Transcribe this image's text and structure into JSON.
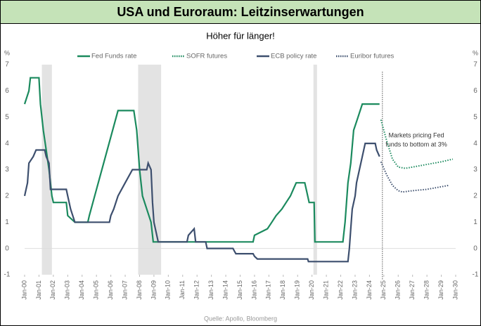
{
  "chart_data": {
    "type": "line",
    "title": "USA und Euroraum: Leitzinserwartungen",
    "subtitle": "Höher für länger!",
    "source": "Quelle: Apollo, Bloomberg",
    "ylabel": "%",
    "y2label": "%",
    "annotation": [
      "Markets pricing Fed",
      "funds to bottom at 3%"
    ],
    "vline": 2024.9,
    "shaded": [
      [
        2001.2,
        2001.9
      ],
      [
        2007.9,
        2009.5
      ],
      [
        2020.1,
        2020.35
      ]
    ],
    "xlim": [
      2000,
      2030
    ],
    "xticks": [
      {
        "value": 2000,
        "label": "Jan-00"
      },
      {
        "value": 2001,
        "label": "Jan-01"
      },
      {
        "value": 2002,
        "label": "Jan-02"
      },
      {
        "value": 2003,
        "label": "Jan-03"
      },
      {
        "value": 2004,
        "label": "Jan-04"
      },
      {
        "value": 2005,
        "label": "Jan-05"
      },
      {
        "value": 2006,
        "label": "Jan-06"
      },
      {
        "value": 2007,
        "label": "Jan-07"
      },
      {
        "value": 2008,
        "label": "Jan-08"
      },
      {
        "value": 2009,
        "label": "Jan-09"
      },
      {
        "value": 2010,
        "label": "Jan-10"
      },
      {
        "value": 2011,
        "label": "Jan-11"
      },
      {
        "value": 2012,
        "label": "Jan-12"
      },
      {
        "value": 2013,
        "label": "Jan-13"
      },
      {
        "value": 2014,
        "label": "Jan-14"
      },
      {
        "value": 2015,
        "label": "Jan-15"
      },
      {
        "value": 2016,
        "label": "Jan-16"
      },
      {
        "value": 2017,
        "label": "Jan-17"
      },
      {
        "value": 2018,
        "label": "Jan-18"
      },
      {
        "value": 2019,
        "label": "Jan-19"
      },
      {
        "value": 2020,
        "label": "Jan-20"
      },
      {
        "value": 2021,
        "label": "Jan-21"
      },
      {
        "value": 2022,
        "label": "Jan-22"
      },
      {
        "value": 2023,
        "label": "Jan-23"
      },
      {
        "value": 2024,
        "label": "Jan-24"
      },
      {
        "value": 2025,
        "label": "Jan-25"
      },
      {
        "value": 2026,
        "label": "Jan-26"
      },
      {
        "value": 2027,
        "label": "Jan-27"
      },
      {
        "value": 2028,
        "label": "Jan-28"
      },
      {
        "value": 2029,
        "label": "Jan-29"
      },
      {
        "value": 2030,
        "label": "Jan-30"
      }
    ],
    "ylim": [
      -1,
      7
    ],
    "yticks": [
      -1,
      0,
      1,
      2,
      3,
      4,
      5,
      6,
      7
    ],
    "y2lim": [
      -1,
      7
    ],
    "y2ticks": [
      -1,
      0,
      1,
      2,
      3,
      4,
      5,
      6,
      7
    ],
    "series": [
      {
        "name": "Fed Funds rate",
        "color": "#1b8a5e",
        "dash": false,
        "x": [
          2000.0,
          2000.3,
          2000.4,
          2001.0,
          2001.1,
          2001.3,
          2001.5,
          2001.7,
          2001.9,
          2002.0,
          2002.9,
          2003.0,
          2003.5,
          2004.4,
          2004.5,
          2005.0,
          2005.5,
          2006.0,
          2006.5,
          2007.6,
          2007.8,
          2008.0,
          2008.2,
          2008.8,
          2008.95,
          2015.9,
          2016.0,
          2016.9,
          2017.2,
          2017.5,
          2017.9,
          2018.2,
          2018.5,
          2018.7,
          2018.9,
          2019.5,
          2019.6,
          2019.8,
          2020.15,
          2020.2,
          2022.15,
          2022.3,
          2022.5,
          2022.7,
          2022.9,
          2023.2,
          2023.5,
          2024.7
        ],
        "values": [
          5.5,
          6.0,
          6.5,
          6.5,
          5.5,
          4.5,
          3.75,
          3.0,
          2.0,
          1.75,
          1.75,
          1.25,
          1.0,
          1.0,
          1.25,
          2.25,
          3.25,
          4.25,
          5.25,
          5.25,
          4.5,
          3.0,
          2.0,
          1.0,
          0.25,
          0.25,
          0.5,
          0.75,
          1.0,
          1.25,
          1.5,
          1.75,
          2.0,
          2.25,
          2.5,
          2.5,
          2.25,
          1.75,
          1.75,
          0.25,
          0.25,
          1.0,
          2.5,
          3.25,
          4.5,
          5.0,
          5.5,
          5.5
        ]
      },
      {
        "name": "SOFR futures",
        "color": "#1b8a5e",
        "dash": true,
        "x": [
          2024.8,
          2025.2,
          2025.6,
          2026.0,
          2026.5,
          2027.0,
          2028.0,
          2029.0,
          2029.8
        ],
        "values": [
          4.9,
          4.1,
          3.4,
          3.1,
          3.05,
          3.1,
          3.2,
          3.3,
          3.4
        ]
      },
      {
        "name": "ECB policy rate",
        "color": "#3d4f6e",
        "dash": false,
        "x": [
          2000.0,
          2000.2,
          2000.3,
          2000.6,
          2000.8,
          2001.4,
          2001.5,
          2001.7,
          2001.8,
          2002.9,
          2003.0,
          2003.2,
          2003.5,
          2005.9,
          2006.0,
          2006.2,
          2006.5,
          2007.0,
          2007.5,
          2008.5,
          2008.6,
          2008.8,
          2008.9,
          2009.0,
          2009.3,
          2011.3,
          2011.4,
          2011.8,
          2011.9,
          2012.6,
          2012.7,
          2014.5,
          2014.6,
          2014.7,
          2015.9,
          2016.0,
          2016.2,
          2019.7,
          2019.75,
          2022.5,
          2022.6,
          2022.7,
          2022.8,
          2023.0,
          2023.1,
          2023.3,
          2023.5,
          2023.7,
          2024.4,
          2024.5,
          2024.7
        ],
        "values": [
          2.0,
          2.5,
          3.25,
          3.5,
          3.75,
          3.75,
          3.5,
          3.25,
          2.25,
          2.25,
          2.0,
          1.5,
          1.0,
          1.0,
          1.25,
          1.5,
          2.0,
          2.5,
          3.0,
          3.0,
          3.25,
          3.0,
          1.75,
          1.0,
          0.25,
          0.25,
          0.5,
          0.75,
          0.25,
          0.25,
          0.0,
          0.0,
          -0.1,
          -0.2,
          -0.2,
          -0.3,
          -0.4,
          -0.4,
          -0.5,
          -0.5,
          0.0,
          0.75,
          1.5,
          2.0,
          2.5,
          3.0,
          3.5,
          4.0,
          4.0,
          3.75,
          3.5
        ]
      },
      {
        "name": "Euribor futures",
        "color": "#3d4f6e",
        "dash": true,
        "x": [
          2024.8,
          2025.2,
          2025.6,
          2026.0,
          2026.3,
          2027.0,
          2028.0,
          2029.0,
          2029.5
        ],
        "values": [
          3.3,
          2.8,
          2.4,
          2.2,
          2.15,
          2.2,
          2.25,
          2.35,
          2.4
        ]
      }
    ]
  }
}
